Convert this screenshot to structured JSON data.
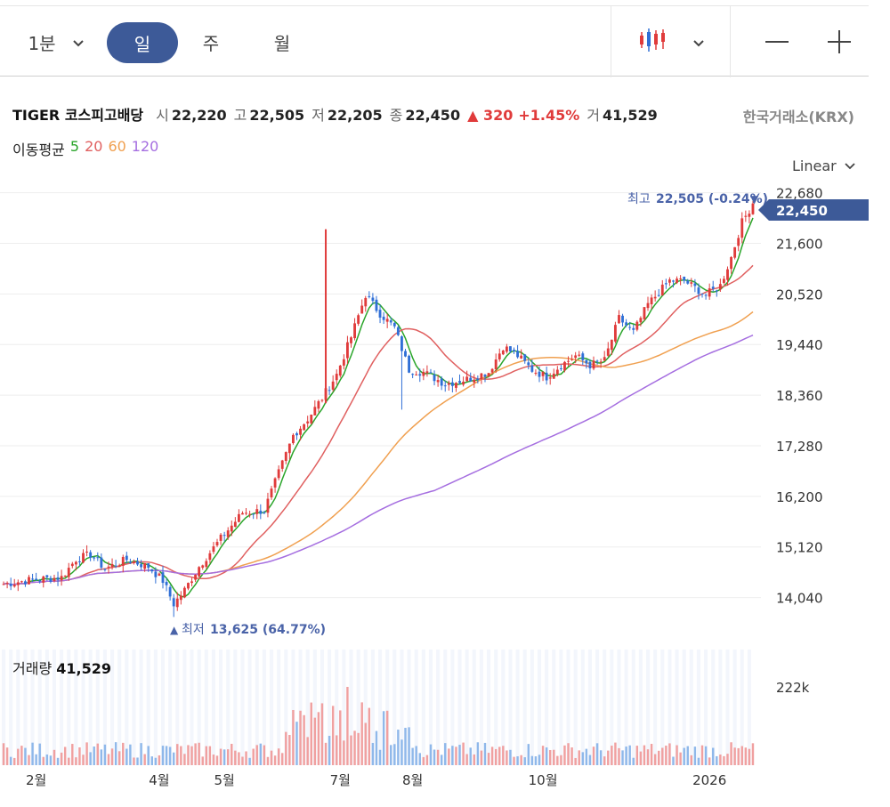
{
  "toolbar": {
    "interval_minute": "1분",
    "interval_day": "일",
    "interval_week": "주",
    "interval_month": "월",
    "chart_type_icon": "candlestick-icon",
    "zoom_out": "—",
    "zoom_in": "+"
  },
  "info": {
    "name": "TIGER 코스피고배당",
    "open_label": "시",
    "open": "22,220",
    "high_label": "고",
    "high": "22,505",
    "low_label": "저",
    "low": "22,205",
    "close_label": "종",
    "close": "22,450",
    "change": "▲ 320",
    "change_pct": "+1.45%",
    "volume_label": "거",
    "volume": "41,529",
    "exchange": "한국거래소(KRX)"
  },
  "ma": {
    "title": "이동평균",
    "ma5": "5",
    "ma20": "20",
    "ma60": "60",
    "ma120": "120"
  },
  "scale": {
    "label": "Linear"
  },
  "annotations": {
    "high_label": "최고",
    "high_value": "22,505 (-0.24%)",
    "low_label": "최저",
    "low_value": "13,625 (64.77%)",
    "current_price": "22,450"
  },
  "volume_panel": {
    "title": "거래량",
    "value": "41,529",
    "axis_label": "222k"
  },
  "colors": {
    "accent": "#3d5a98",
    "up": "#e03b3b",
    "down": "#2f6fd6",
    "ma5": "#2aa52a",
    "ma20": "#e06060",
    "ma60": "#f0a050",
    "ma120": "#a56ee0"
  },
  "chart_data": {
    "type": "candlestick",
    "y_ticks": [
      "22,680",
      "21,600",
      "20,520",
      "19,440",
      "18,360",
      "17,280",
      "16,200",
      "15,120",
      "14,040"
    ],
    "y_tick_values": [
      22680,
      21600,
      20520,
      19440,
      18360,
      17280,
      16200,
      15120,
      14040
    ],
    "ylim": [
      13500,
      22900
    ],
    "x_tick_labels": [
      "2월",
      "4월",
      "5월",
      "7월",
      "8월",
      "10월",
      "2026"
    ],
    "x_tick_index": [
      9,
      43,
      61,
      93,
      113,
      149,
      195
    ],
    "count": 208,
    "close_anchors": [
      [
        0,
        14330
      ],
      [
        8,
        14420
      ],
      [
        16,
        14470
      ],
      [
        20,
        14860
      ],
      [
        24,
        14960
      ],
      [
        28,
        14660
      ],
      [
        34,
        14850
      ],
      [
        40,
        14700
      ],
      [
        44,
        14400
      ],
      [
        47,
        13900
      ],
      [
        50,
        14200
      ],
      [
        54,
        14700
      ],
      [
        60,
        15300
      ],
      [
        66,
        15850
      ],
      [
        72,
        15900
      ],
      [
        76,
        16700
      ],
      [
        80,
        17500
      ],
      [
        84,
        17850
      ],
      [
        88,
        18300
      ],
      [
        92,
        18800
      ],
      [
        96,
        19600
      ],
      [
        100,
        20500
      ],
      [
        104,
        20100
      ],
      [
        108,
        19800
      ],
      [
        112,
        18900
      ],
      [
        116,
        18850
      ],
      [
        122,
        18600
      ],
      [
        128,
        18700
      ],
      [
        134,
        18850
      ],
      [
        138,
        19400
      ],
      [
        142,
        19200
      ],
      [
        146,
        18900
      ],
      [
        150,
        18750
      ],
      [
        154,
        19000
      ],
      [
        158,
        19200
      ],
      [
        162,
        19000
      ],
      [
        166,
        19100
      ],
      [
        170,
        20000
      ],
      [
        174,
        19700
      ],
      [
        178,
        20300
      ],
      [
        184,
        20800
      ],
      [
        188,
        20800
      ],
      [
        194,
        20500
      ],
      [
        198,
        20700
      ],
      [
        201,
        21300
      ],
      [
        204,
        22050
      ],
      [
        207,
        22450
      ]
    ],
    "ohlc_last": {
      "open": 22220,
      "high": 22505,
      "low": 22205,
      "close": 22450
    },
    "period_high": 22505,
    "period_low": 13625,
    "moving_averages": [
      5,
      20,
      60,
      120
    ],
    "volume_max_label": "222k",
    "last_volume": 41529
  }
}
